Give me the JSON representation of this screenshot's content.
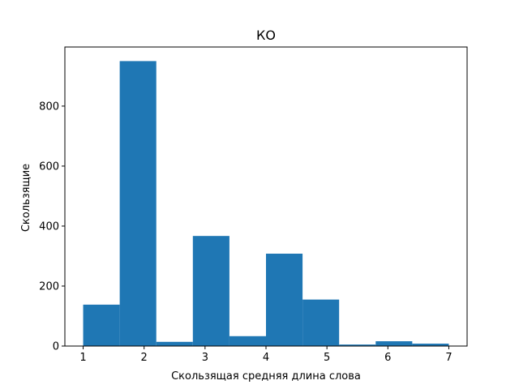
{
  "chart_data": {
    "type": "bar",
    "title": "КО",
    "xlabel": "Скользящая средняя длина слова",
    "ylabel": "Скользящие",
    "bin_edges": [
      1.0,
      1.6,
      2.2,
      2.8,
      3.4,
      4.0,
      4.6,
      5.2,
      5.8,
      6.4,
      7.0
    ],
    "values": [
      138,
      950,
      14,
      367,
      33,
      308,
      155,
      5,
      16,
      8
    ],
    "xlim": [
      0.7,
      7.3
    ],
    "ylim": [
      0,
      997
    ],
    "xticks": [
      1,
      2,
      3,
      4,
      5,
      6,
      7
    ],
    "xtick_labels": [
      "1",
      "2",
      "3",
      "4",
      "5",
      "6",
      "7"
    ],
    "yticks": [
      0,
      200,
      400,
      600,
      800
    ],
    "ytick_labels": [
      "0",
      "200",
      "400",
      "600",
      "800"
    ],
    "grid": false,
    "colors": {
      "bar": "#1f77b4",
      "axes": "#000000",
      "background": "#ffffff"
    }
  }
}
